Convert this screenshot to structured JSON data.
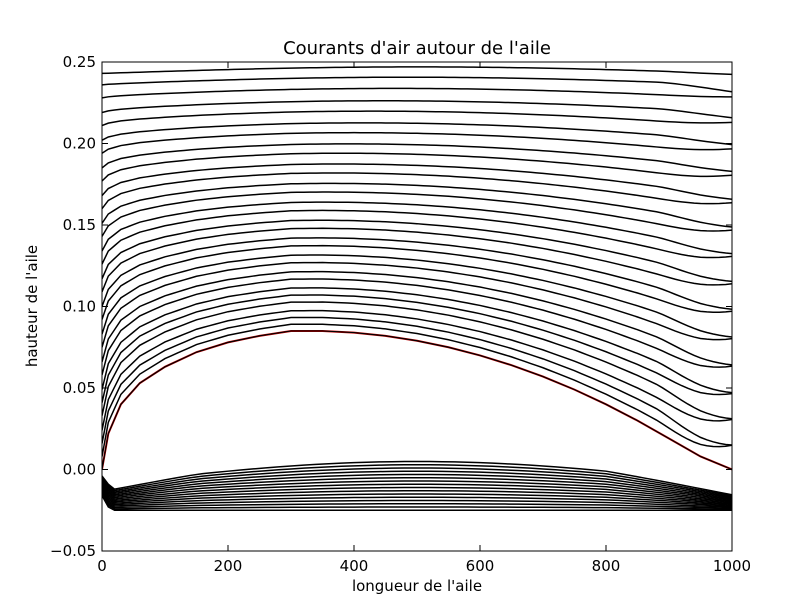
{
  "chart_data": {
    "type": "line",
    "title": "Courants d'air autour de l'aile",
    "xlabel": "longueur de l'aile",
    "ylabel": "hauteur de l'aile",
    "xlim": [
      0,
      1000
    ],
    "ylim": [
      -0.05,
      0.25
    ],
    "x_ticks": [
      "0",
      "200",
      "400",
      "600",
      "800",
      "1000"
    ],
    "y_ticks": [
      "−0.05",
      "0.00",
      "0.05",
      "0.10",
      "0.15",
      "0.20",
      "0.25"
    ],
    "x_tick_values": [
      0,
      200,
      400,
      600,
      800,
      1000
    ],
    "y_tick_values": [
      -0.05,
      0.0,
      0.05,
      0.1,
      0.15,
      0.2,
      0.25
    ],
    "grid": false,
    "line_color": "#000000",
    "surface_color": "#cc0000",
    "airfoil_upper_surface": {
      "x": [
        0,
        10,
        30,
        60,
        100,
        150,
        200,
        250,
        300,
        350,
        400,
        450,
        500,
        550,
        600,
        650,
        700,
        750,
        800,
        850,
        900,
        950,
        1000
      ],
      "y": [
        0.0,
        0.022,
        0.04,
        0.053,
        0.063,
        0.072,
        0.078,
        0.082,
        0.085,
        0.085,
        0.084,
        0.082,
        0.079,
        0.075,
        0.07,
        0.064,
        0.057,
        0.049,
        0.04,
        0.03,
        0.019,
        0.008,
        0.0
      ]
    },
    "upper_streamline_start_y": [
      0.0,
      0.008,
      0.016,
      0.024,
      0.033,
      0.041,
      0.049,
      0.058,
      0.066,
      0.075,
      0.083,
      0.092,
      0.1,
      0.109,
      0.117,
      0.126,
      0.134,
      0.143,
      0.151,
      0.16,
      0.168,
      0.177,
      0.185,
      0.194,
      0.202,
      0.211,
      0.219,
      0.228,
      0.236,
      0.243
    ],
    "upper_streamline_peak_y": [
      0.085,
      0.102,
      0.111,
      0.119,
      0.128,
      0.136,
      0.145,
      0.153,
      0.162,
      0.17,
      0.179,
      0.187,
      0.196,
      0.204,
      0.213,
      0.221,
      0.23,
      0.238,
      0.247
    ],
    "upper_streamline_end_y": [
      0.002,
      0.015,
      0.031,
      0.047,
      0.064,
      0.081,
      0.098,
      0.115,
      0.132,
      0.148,
      0.165,
      0.182,
      0.198,
      0.214,
      0.229,
      0.242
    ],
    "wake_lines": {
      "count": 16,
      "top_y": -0.001,
      "bottom_y": -0.025,
      "bump_peak_y": 0.008
    }
  }
}
